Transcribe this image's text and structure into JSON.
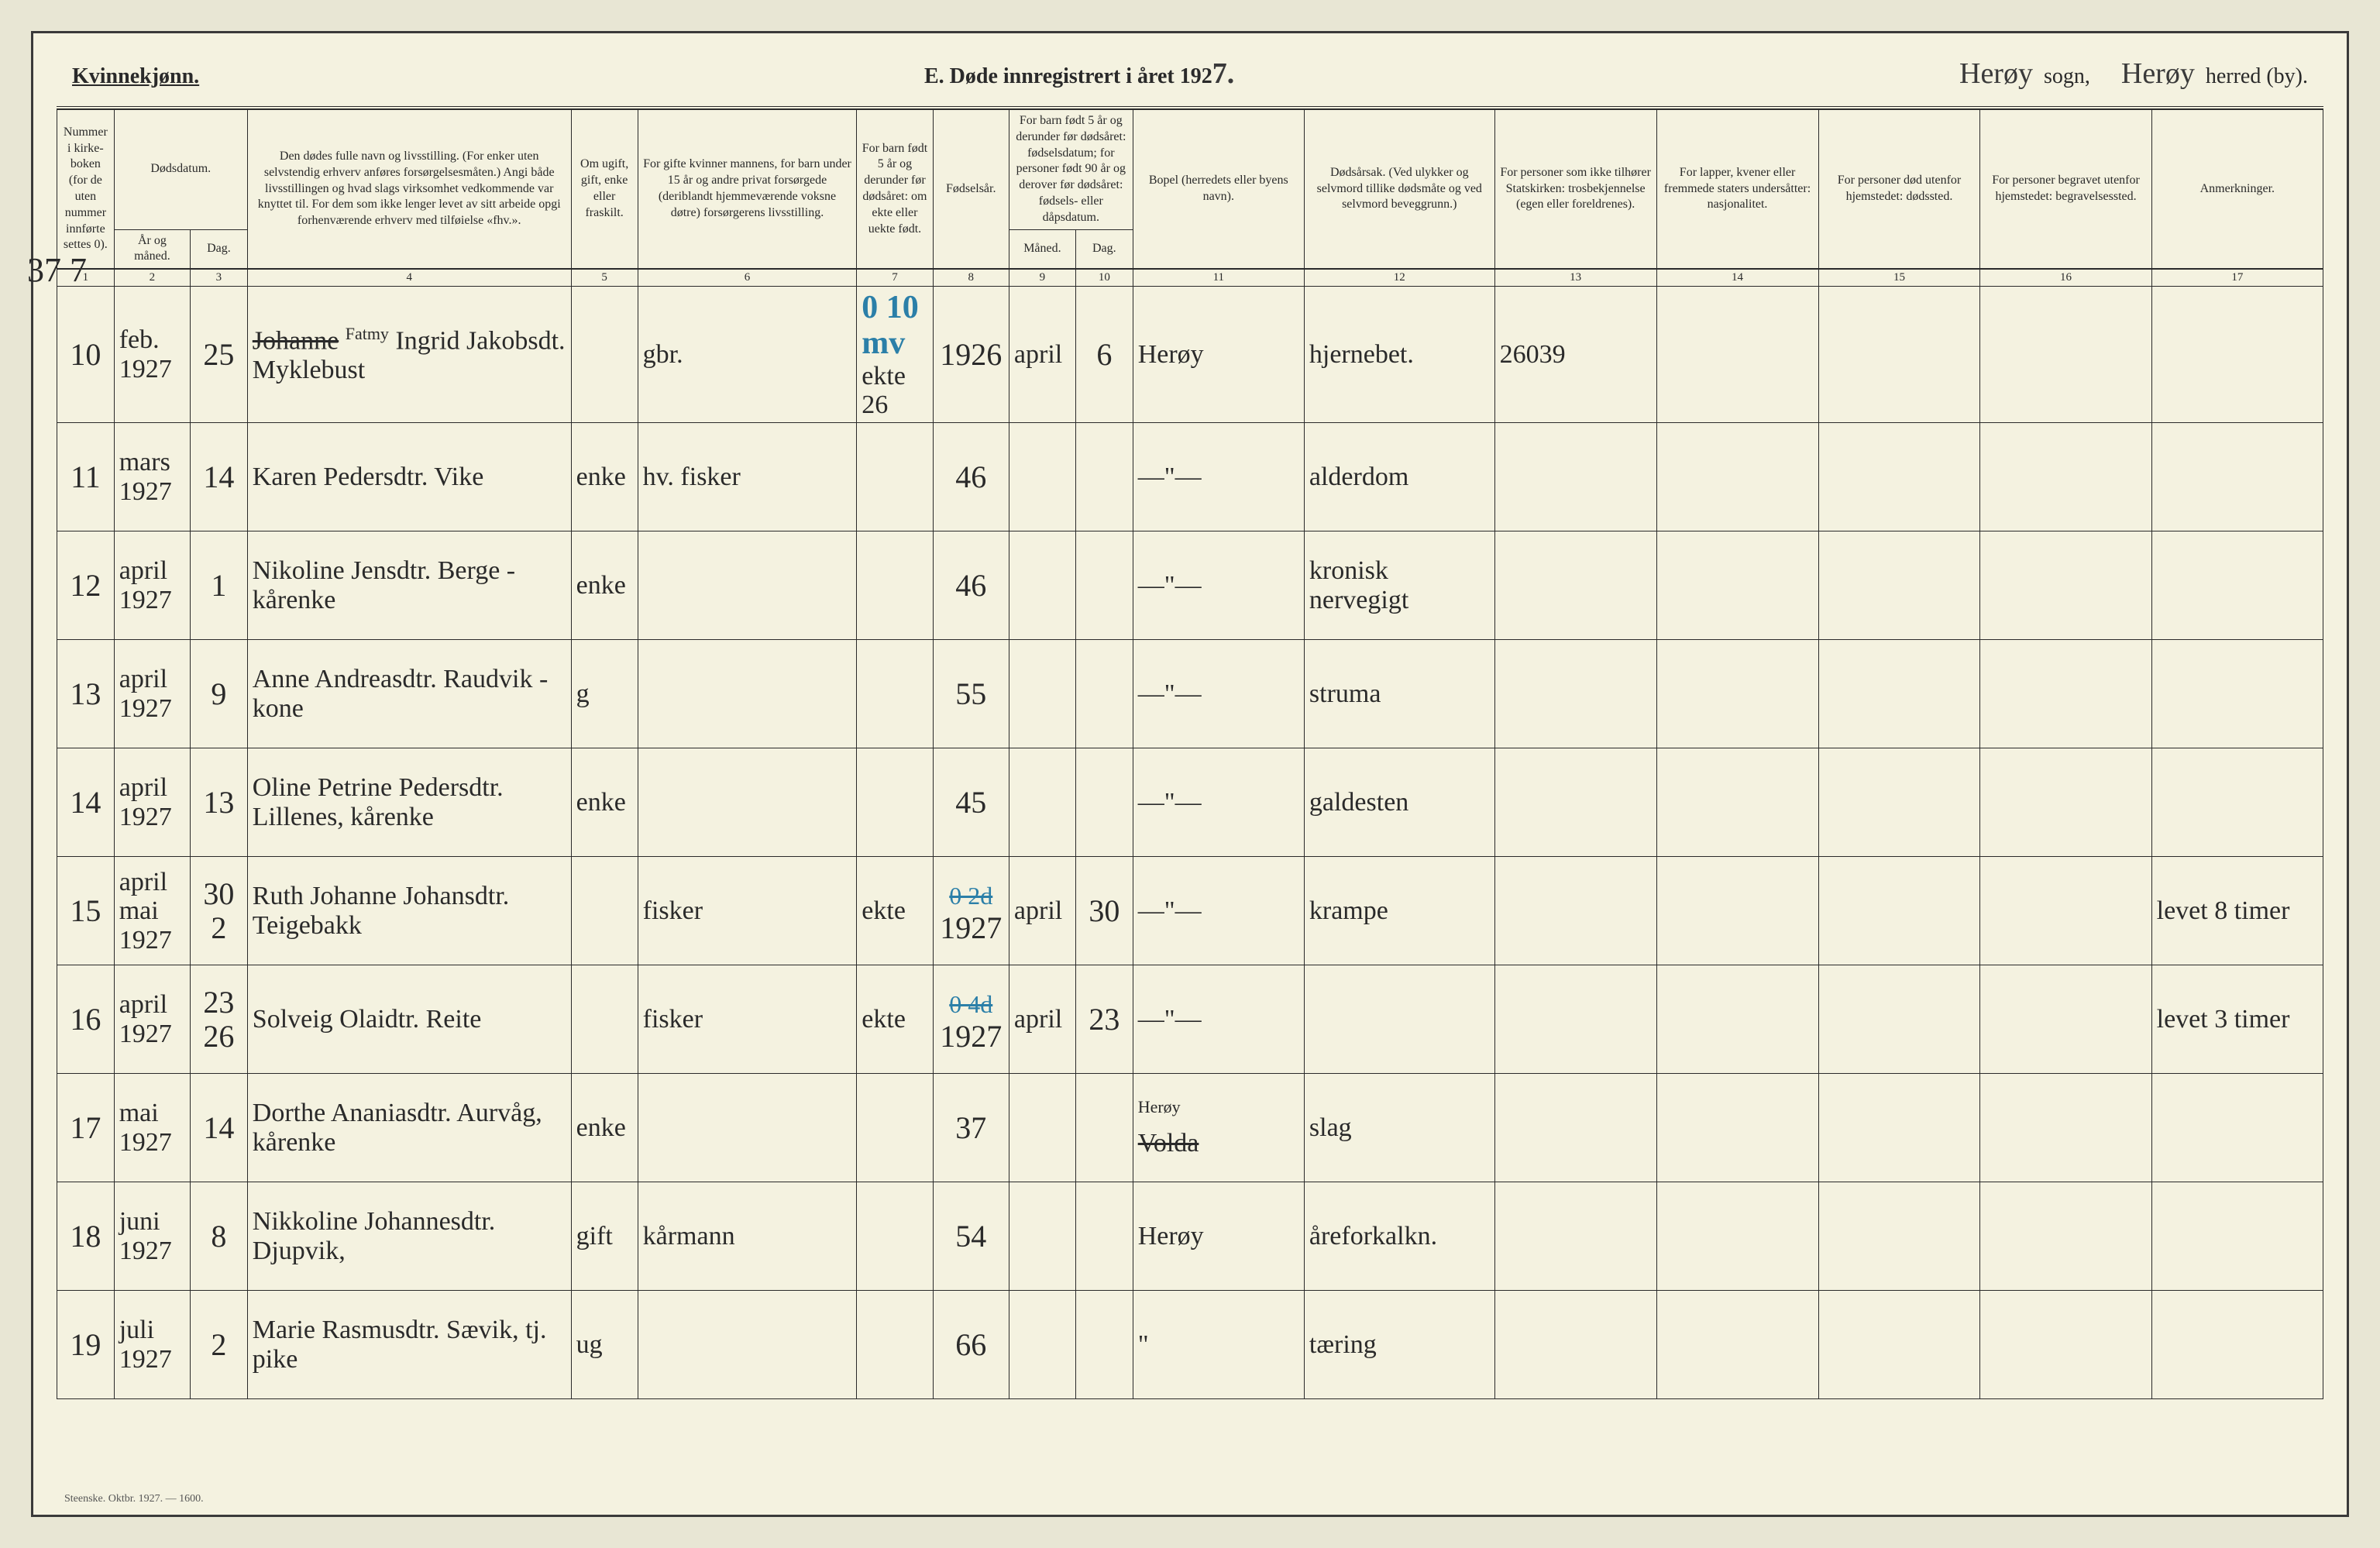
{
  "header": {
    "gender_label": "Kvinnekjønn.",
    "title_prefix": "E.  Døde innregistrert i året 192",
    "year_suffix": "7.",
    "sogn_value": "Herøy",
    "sogn_label": "sogn,",
    "herred_value": "Herøy",
    "herred_label": "herred (by)."
  },
  "columns": {
    "c1": "Nummer i kirke-boken (for de uten nummer innførte settes 0).",
    "c2_top": "Dødsdatum.",
    "c2a": "År og måned.",
    "c2b": "Dag.",
    "c4": "Den dødes fulle navn og livsstilling. (For enker uten selvstendig erhverv anføres forsørgelsesmåten.) Angi både livsstillingen og hvad slags virksomhet vedkommende var knyttet til. For dem som ikke lenger levet av sitt arbeide opgi forhenværende erhverv med tilføielse «fhv.».",
    "c5": "Om ugift, gift, enke eller fraskilt.",
    "c6": "For gifte kvinner mannens, for barn under 15 år og andre privat forsørgede (deriblandt hjemmeværende voksne døtre) forsørgerens livsstilling.",
    "c7": "For barn født 5 år og derunder før dødsåret: om ekte eller uekte født.",
    "c8": "Fødselsår.",
    "c9_top": "For barn født 5 år og derunder før dødsåret: fødselsdatum; for personer født 90 år og derover før dødsåret: fødsels- eller dåpsdatum.",
    "c9a": "Måned.",
    "c9b": "Dag.",
    "c11": "Bopel (herredets eller byens navn).",
    "c12": "Dødsårsak. (Ved ulykker og selvmord tillike dødsmåte og ved selvmord beveggrunn.)",
    "c13": "For personer som ikke tilhører Statskirken: trosbekjennelse (egen eller foreldrenes).",
    "c14": "For lapper, kvener eller fremmede staters undersåtter: nasjonalitet.",
    "c15": "For personer død utenfor hjemstedet: dødssted.",
    "c16": "For personer begravet utenfor hjemstedet: begravelsessted.",
    "c17": "Anmerkninger."
  },
  "colnums": [
    "1",
    "2",
    "3",
    "4",
    "5",
    "6",
    "7",
    "8",
    "9",
    "10",
    "11",
    "12",
    "13",
    "14",
    "15",
    "16",
    "17"
  ],
  "margin_mark": "37 7",
  "rows": [
    {
      "num": "10",
      "mnd": "feb. 1927",
      "dag": "25",
      "navn": "Ingrid Johanne Jakobsdt. Myklebust",
      "korr": "Fatmy",
      "sivil": "",
      "fors": "gbr.",
      "ekte": "ekte 26",
      "aar": "1926",
      "fdm": "april",
      "fdd": "6",
      "bopel": "Herøy",
      "aarsak": "hjernebet.",
      "c13": "26039",
      "c14": "",
      "c15": "",
      "c16": "",
      "anm": "",
      "blue": "0 10 mv"
    },
    {
      "num": "11",
      "mnd": "mars 1927",
      "dag": "14",
      "navn": "Karen Pedersdtr. Vike",
      "sivil": "enke",
      "fors": "hv. fisker",
      "ekte": "",
      "aar": "46",
      "fdm": "",
      "fdd": "",
      "bopel": "—\"—",
      "aarsak": "alderdom",
      "c13": "",
      "c14": "",
      "c15": "",
      "c16": "",
      "anm": ""
    },
    {
      "num": "12",
      "mnd": "april 1927",
      "dag": "1",
      "navn": "Nikoline Jensdtr. Berge - kårenke",
      "sivil": "enke",
      "fors": "",
      "ekte": "",
      "aar": "46",
      "fdm": "",
      "fdd": "",
      "bopel": "—\"—",
      "aarsak": "kronisk nervegigt",
      "c13": "",
      "c14": "",
      "c15": "",
      "c16": "",
      "anm": ""
    },
    {
      "num": "13",
      "mnd": "april 1927",
      "dag": "9",
      "navn": "Anne Andreasdtr. Raudvik - kone",
      "sivil": "g",
      "fors": "",
      "ekte": "",
      "aar": "55",
      "fdm": "",
      "fdd": "",
      "bopel": "—\"—",
      "aarsak": "struma",
      "c13": "",
      "c14": "",
      "c15": "",
      "c16": "",
      "anm": ""
    },
    {
      "num": "14",
      "mnd": "april 1927",
      "dag": "13",
      "navn": "Oline Petrine Pedersdtr. Lillenes, kårenke",
      "sivil": "enke",
      "fors": "",
      "ekte": "",
      "aar": "45",
      "fdm": "",
      "fdd": "",
      "bopel": "—\"—",
      "aarsak": "galdesten",
      "c13": "",
      "c14": "",
      "c15": "",
      "c16": "",
      "anm": ""
    },
    {
      "num": "15",
      "mnd": "april mai 1927",
      "dag": "30 2",
      "navn": "Ruth Johanne Johansdtr. Teigebakk",
      "sivil": "",
      "fors": "fisker",
      "ekte": "ekte",
      "aar": "1927",
      "fdm": "april",
      "fdd": "30",
      "bopel": "—\"—",
      "aarsak": "krampe",
      "c13": "",
      "c14": "",
      "c15": "",
      "c16": "",
      "anm": "levet 8 timer",
      "blue": "0 2d"
    },
    {
      "num": "16",
      "mnd": "april 1927",
      "dag": "23 26",
      "navn": "Solveig Olaidtr. Reite",
      "sivil": "",
      "fors": "fisker",
      "ekte": "ekte",
      "aar": "1927",
      "fdm": "april",
      "fdd": "23",
      "bopel": "—\"—",
      "aarsak": "",
      "c13": "",
      "c14": "",
      "c15": "",
      "c16": "",
      "anm": "levet 3 timer",
      "blue": "0 4d"
    },
    {
      "num": "17",
      "mnd": "mai 1927",
      "dag": "14",
      "navn": "Dorthe Ananiasdtr. Aurvåg, kårenke",
      "sivil": "enke",
      "fors": "",
      "ekte": "",
      "aar": "37",
      "fdm": "",
      "fdd": "",
      "bopel": "Herøy Volda",
      "aarsak": "slag",
      "c13": "",
      "c14": "",
      "c15": "",
      "c16": "",
      "anm": ""
    },
    {
      "num": "18",
      "mnd": "juni 1927",
      "dag": "8",
      "navn": "Nikkoline Johannesdtr. Djupvik,",
      "sivil": "gift",
      "fors": "kårmann",
      "ekte": "",
      "aar": "54",
      "fdm": "",
      "fdd": "",
      "bopel": "Herøy",
      "aarsak": "åreforkalkn.",
      "c13": "",
      "c14": "",
      "c15": "",
      "c16": "",
      "anm": ""
    },
    {
      "num": "19",
      "mnd": "juli 1927",
      "dag": "2",
      "navn": "Marie Rasmusdtr. Sævik, tj. pike",
      "sivil": "ug",
      "fors": "",
      "ekte": "",
      "aar": "66",
      "fdm": "",
      "fdd": "",
      "bopel": "\"",
      "aarsak": "tæring",
      "c13": "",
      "c14": "",
      "c15": "",
      "c16": "",
      "anm": ""
    }
  ],
  "footer": "Steenske. Oktbr. 1927. — 1600.",
  "colors": {
    "page_bg": "#f4f2e0",
    "ink": "#2a2a2a",
    "blue_ink": "#2b7fa8"
  }
}
